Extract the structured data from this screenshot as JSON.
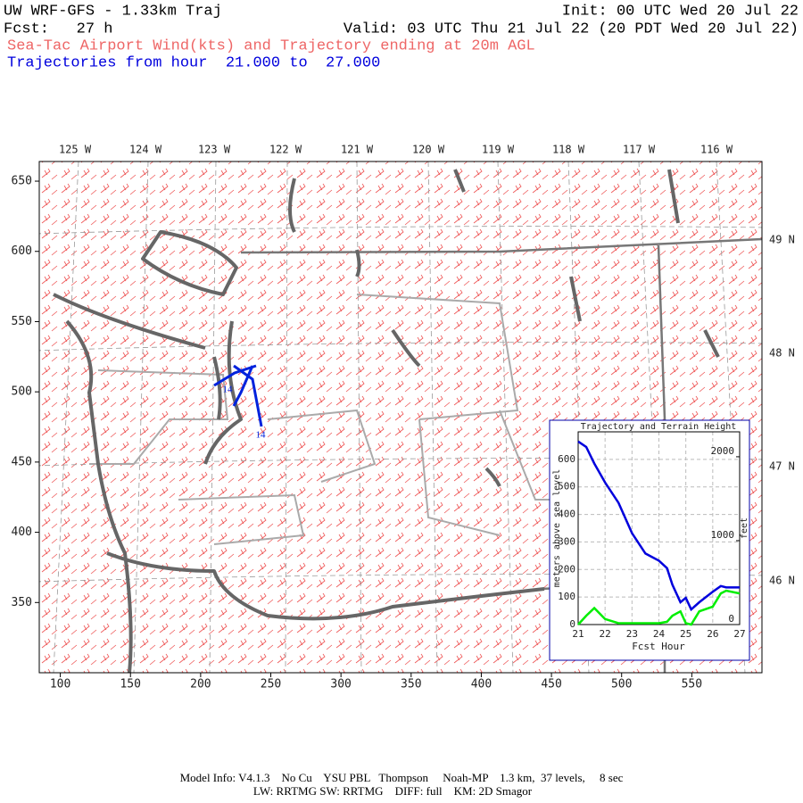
{
  "header": {
    "model": "UW WRF-GFS - 1.33km Traj",
    "init": "Init: 00 UTC Wed 20 Jul 22",
    "fcst": "Fcst:   27 h",
    "valid": "Valid: 03 UTC Thu 21 Jul 22 (20 PDT Wed 20 Jul 22)",
    "subtitle": "Sea-Tac Airport Wind(kts) and Trajectory ending at 20m AGL",
    "trajectory_range": "Trajectories from hour  21.000 to  27.000"
  },
  "map": {
    "xlim": [
      85,
      600
    ],
    "ylim": [
      300,
      664
    ],
    "xticks": [
      100,
      150,
      200,
      250,
      300,
      350,
      400,
      450,
      500,
      550
    ],
    "yticks": [
      350,
      400,
      450,
      500,
      550,
      600,
      650
    ],
    "lon_labels": [
      "125 W",
      "124 W",
      "123 W",
      "122 W",
      "121 W",
      "120 W",
      "119 W",
      "118 W",
      "117 W",
      "116 W"
    ],
    "lat_labels": [
      "49 N",
      "48 N",
      "47 N",
      "46 N"
    ],
    "trajectory_labels": [
      "14",
      "14"
    ]
  },
  "chart_data": {
    "type": "line",
    "title": "Trajectory and Terrain Height",
    "xlabel": "Fcst Hour",
    "ylabel": "meters above sea level",
    "y2label": "feet",
    "x": [
      21,
      21.3,
      21.6,
      22,
      22.5,
      23,
      23.5,
      24,
      24.3,
      24.5,
      24.8,
      25,
      25.2,
      25.5,
      26,
      26.3,
      26.5,
      27
    ],
    "series": [
      {
        "name": "Trajectory",
        "color": "#0000dd",
        "values": [
          665,
          645,
          585,
          516,
          442,
          332,
          258,
          232,
          205,
          145,
          81,
          97,
          55,
          81,
          119,
          140,
          135,
          135
        ]
      },
      {
        "name": "Terrain",
        "color": "#00ee00",
        "values": [
          0,
          32,
          60,
          20,
          5,
          5,
          5,
          5,
          10,
          32,
          48,
          5,
          0,
          48,
          65,
          113,
          123,
          113
        ]
      }
    ],
    "xlim": [
      21,
      27
    ],
    "ylim": [
      0,
      700
    ],
    "y2lim": [
      0,
      2297
    ],
    "xticks": [
      21,
      22,
      23,
      24,
      25,
      26,
      27
    ],
    "yticks": [
      0,
      100,
      200,
      300,
      400,
      500,
      600
    ],
    "y2ticks": [
      0,
      1000,
      2000
    ],
    "grid": true
  },
  "footer": {
    "line1": "Model Info: V4.1.3    No Cu    YSU PBL   Thompson     Noah-MP    1.3 km,  37 levels,     8 sec",
    "line2": "LW: RRTMG SW: RRTMG    DIFF: full    KM: 2D Smagor"
  }
}
